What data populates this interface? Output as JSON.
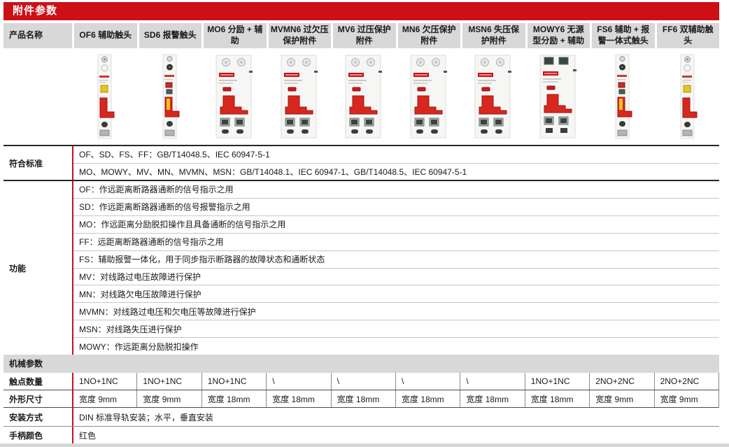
{
  "title": "附件参数",
  "colors": {
    "brand_red": "#CC1016",
    "header_gray": "#D8D8D8",
    "handle_red": "#D6281E"
  },
  "table": {
    "product_col_header": "产品名称",
    "products": [
      {
        "name": "OF6 辅助触头",
        "image": "breaker-9mm-yellow-button-icon",
        "contacts": "1NO+1NC",
        "size": "宽度 9mm"
      },
      {
        "name": "SD6 报警触头",
        "image": "breaker-9mm-striped-handle-icon",
        "contacts": "1NO+1NC",
        "size": "宽度 9mm"
      },
      {
        "name": "MO6 分励 + 辅助",
        "image": "breaker-18mm-icon",
        "contacts": "1NO+1NC",
        "size": "宽度 18mm"
      },
      {
        "name": "MVMN6 过欠压保护附件",
        "image": "breaker-18mm-icon",
        "contacts": "\\",
        "size": "宽度 18mm"
      },
      {
        "name": "MV6 过压保护附件",
        "image": "breaker-18mm-icon",
        "contacts": "\\",
        "size": "宽度 18mm"
      },
      {
        "name": "MN6 欠压保护附件",
        "image": "breaker-18mm-icon",
        "contacts": "\\",
        "size": "宽度 18mm"
      },
      {
        "name": "MSN6 失压保护附件",
        "image": "breaker-18mm-icon",
        "contacts": "\\",
        "size": "宽度 18mm"
      },
      {
        "name": "MOWY6 无源型分励 + 辅助",
        "image": "breaker-18mm-top-terminal-icon",
        "contacts": "1NO+1NC",
        "size": "宽度 18mm"
      },
      {
        "name": "FS6 辅助 + 报警一体式触头",
        "image": "breaker-9mm-striped-handle-icon",
        "contacts": "2NO+2NC",
        "size": "宽度 9mm"
      },
      {
        "name": "FF6 双辅助触头",
        "image": "breaker-9mm-yellow-button-icon",
        "contacts": "2NO+2NC",
        "size": "宽度 9mm"
      }
    ],
    "standards": {
      "label": "符合标准",
      "rows": [
        "OF、SD、FS、FF：GB/T14048.5、IEC 60947-5-1",
        "MO、MOWY、MV、MN、MVMN、MSN：GB/T14048.1、IEC 60947-1、GB/T14048.5、IEC 60947-5-1"
      ]
    },
    "functions": {
      "label": "功能",
      "rows": [
        "OF：作远距离断路器通断的信号指示之用",
        "SD：作远距离断路器通断的信号报警指示之用",
        "MO：作远距离分励脱扣操作且具备通断的信号指示之用",
        "FF：远距离断路器通断的信号指示之用",
        "FS：辅助报警一体化，用于同步指示断路器的故障状态和通断状态",
        "MV：对线路过电压故障进行保护",
        "MN：对线路欠电压故障进行保护",
        "MVMN：对线路过电压和欠电压等故障进行保护",
        "MSN：对线路失压进行保护",
        "MOWY：作远距离分励脱扣操作"
      ]
    },
    "mechanical": {
      "section_label": "机械参数",
      "contacts_label": "触点数量",
      "size_label": "外形尺寸",
      "mounting_label": "安装方式",
      "mounting_value": "DIN 标准导轨安装；水平，垂直安装",
      "handle_color_label": "手柄颜色",
      "handle_color_value": "红色"
    }
  }
}
